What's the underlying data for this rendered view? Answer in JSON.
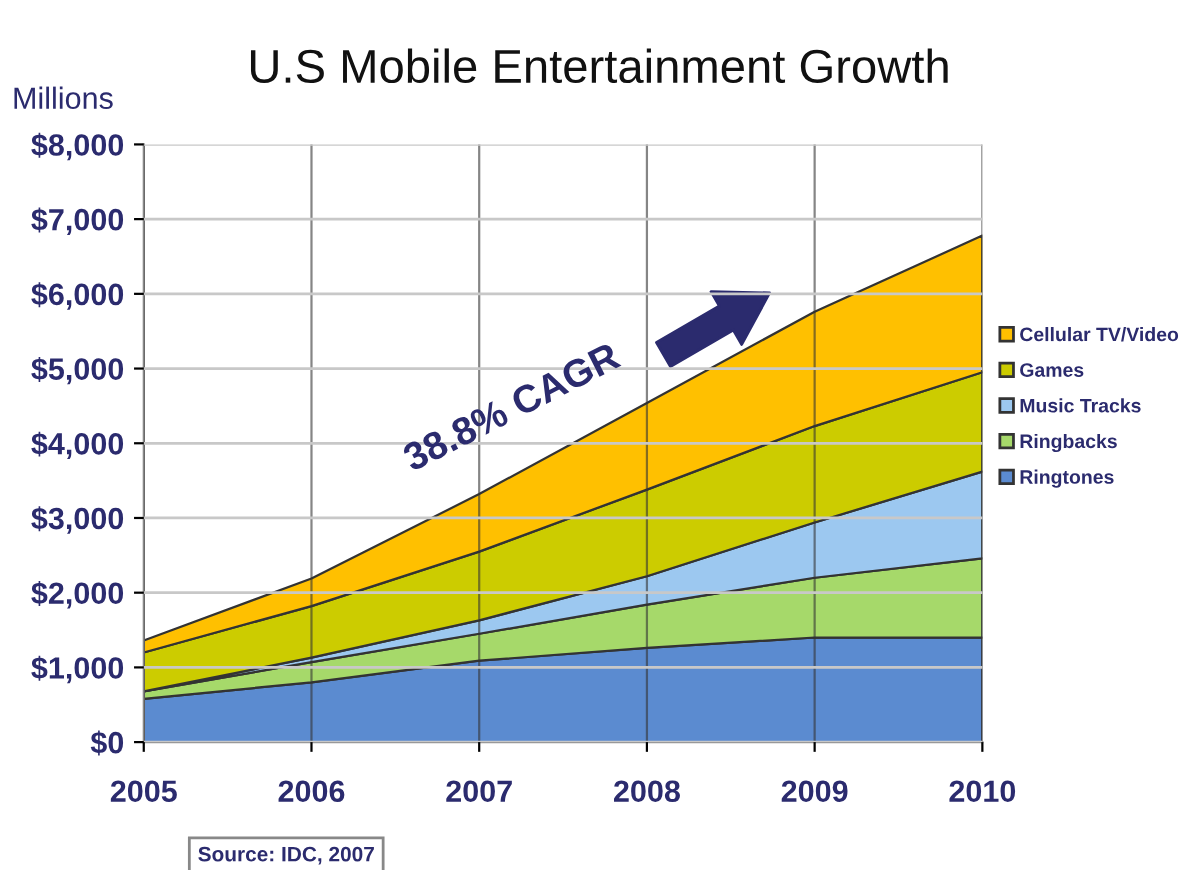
{
  "chart_data": {
    "type": "area",
    "stacked": true,
    "title": "U.S Mobile Entertainment Growth",
    "ylabel": "Millions",
    "x": [
      2005,
      2006,
      2007,
      2008,
      2009,
      2010
    ],
    "series": [
      {
        "name": "Ringtones",
        "color": "#5b8bd0",
        "values": [
          580,
          800,
          1090,
          1260,
          1400,
          1400
        ]
      },
      {
        "name": "Ringbacks",
        "color": "#a6d96a",
        "values": [
          100,
          270,
          360,
          580,
          800,
          1060
        ]
      },
      {
        "name": "Music Tracks",
        "color": "#9cc8f0",
        "values": [
          0,
          60,
          180,
          380,
          740,
          1160
        ]
      },
      {
        "name": "Games",
        "color": "#cccc00",
        "values": [
          520,
          690,
          920,
          1160,
          1290,
          1330
        ]
      },
      {
        "name": "Cellular TV/Video",
        "color": "#ffc000",
        "values": [
          160,
          370,
          770,
          1160,
          1530,
          1830
        ]
      }
    ],
    "xlim": [
      2005,
      2010
    ],
    "xticks": [
      2005,
      2006,
      2007,
      2008,
      2009,
      2010
    ],
    "ylim": [
      0,
      8000
    ],
    "yticks": [
      {
        "value": 0,
        "label": "$0"
      },
      {
        "value": 1000,
        "label": "$1,000"
      },
      {
        "value": 2000,
        "label": "$2,000"
      },
      {
        "value": 3000,
        "label": "$3,000"
      },
      {
        "value": 4000,
        "label": "$4,000"
      },
      {
        "value": 5000,
        "label": "$5,000"
      },
      {
        "value": 6000,
        "label": "$6,000"
      },
      {
        "value": 7000,
        "label": "$7,000"
      },
      {
        "value": 8000,
        "label": "$8,000"
      }
    ],
    "grid": true,
    "legend": "right",
    "annotations": [
      "38.8% CAGR",
      "Source: IDC, 2007"
    ]
  }
}
